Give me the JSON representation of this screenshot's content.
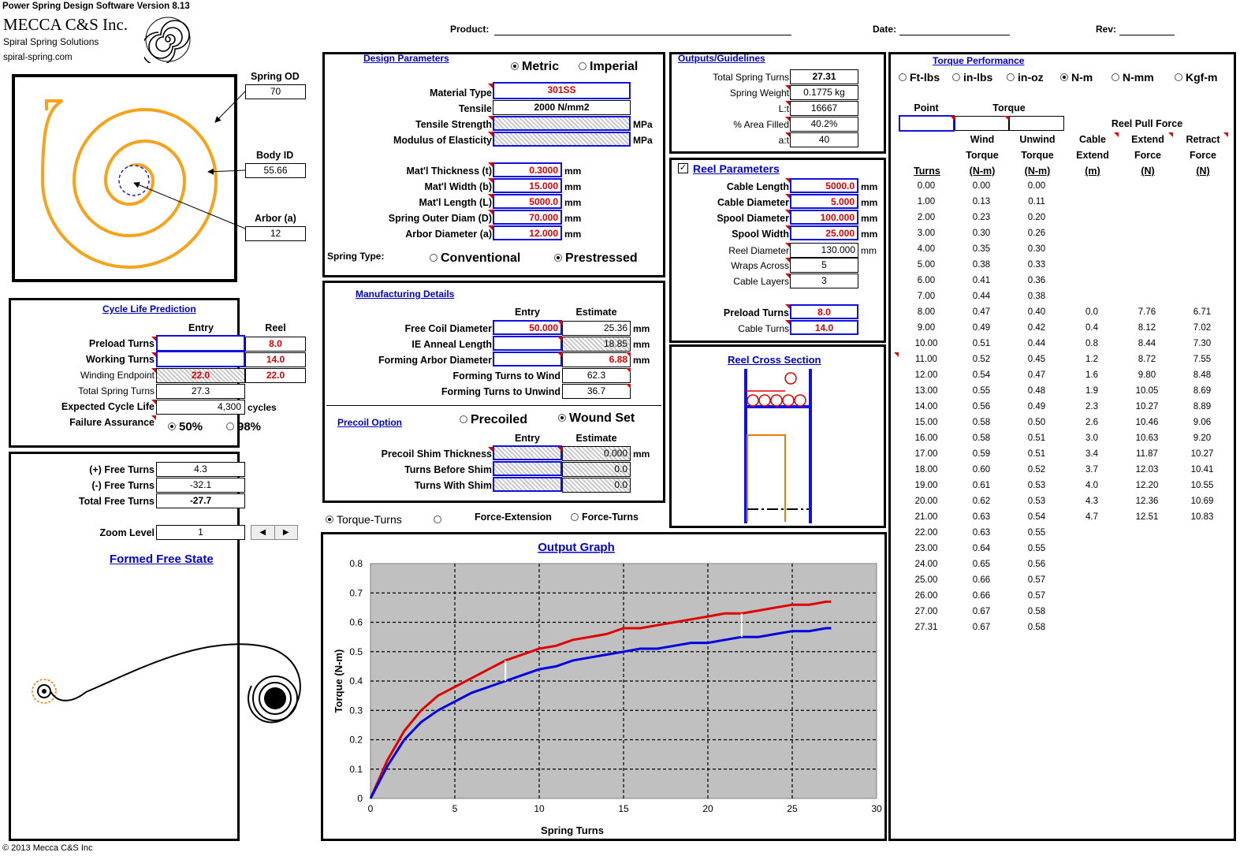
{
  "header": {
    "app_title": "Power Spring Design Software Version 8.13",
    "company": "MECCA C&S Inc.",
    "tagline": "Spiral Spring Solutions",
    "website": "spiral-spring.com",
    "product_label": "Product:",
    "date_label": "Date:",
    "rev_label": "Rev:",
    "footer": "© 2013 Mecca C&S Inc"
  },
  "spring_view": {
    "od_label": "Spring OD",
    "od_value": "70",
    "body_label": "Body ID",
    "body_value": "55.66",
    "arbor_label": "Arbor (a)",
    "arbor_value": "12"
  },
  "cycle": {
    "title": "Cycle Life Prediction",
    "col_entry": "Entry",
    "col_reel": "Reel",
    "preload_label": "Preload Turns",
    "preload_reel": "8.0",
    "working_label": "Working Turns",
    "working_reel": "14.0",
    "winding_label": "Winding Endpoint",
    "winding_entry": "22.0",
    "winding_reel": "22.0",
    "total_label": "Total Spring Turns",
    "total_value": "27.3",
    "life_label": "Expected Cycle Life",
    "life_value": "4,300",
    "life_unit": "cycles",
    "failure_label": "Failure Assurance",
    "opt50": "50%",
    "opt98": "98%"
  },
  "free": {
    "plus_label": "(+) Free Turns",
    "plus_value": "4.3",
    "minus_label": "(-) Free Turns",
    "minus_value": "-32.1",
    "total_label": "Total Free Turns",
    "total_value": "-27.7",
    "zoom_label": "Zoom Level",
    "zoom_value": "1",
    "formed_title": "Formed Free State"
  },
  "design": {
    "title": "Design Parameters",
    "metric": "Metric",
    "imperial": "Imperial",
    "material_label": "Material Type",
    "material_value": "301SS",
    "tensile_label": "Tensile",
    "tensile_value": "2000 N/mm2",
    "tstrength_label": "Tensile Strength",
    "modulus_label": "Modulus of Elasticity",
    "mpa": "MPa",
    "thick_label": "Mat'l Thickness (t)",
    "thick_value": "0.3000",
    "width_label": "Mat'l Width (b)",
    "width_value": "15.000",
    "length_label": "Mat'l Length (L)",
    "length_value": "5000.0",
    "od_label": "Spring Outer Diam (D)",
    "od_value": "70.000",
    "arbor_label": "Arbor Diameter (a)",
    "arbor_value": "12.000",
    "mm": "mm",
    "type_label": "Spring Type:",
    "conventional": "Conventional",
    "prestressed": "Prestressed"
  },
  "mfg": {
    "title": "Manufacturing Details",
    "col_entry": "Entry",
    "col_est": "Estimate",
    "free_coil_label": "Free Coil Diameter",
    "free_coil_entry": "50.000",
    "free_coil_est": "25.36",
    "anneal_label": "IE Anneal Length",
    "anneal_est": "18.85",
    "forming_arbor_label": "Forming Arbor Diameter",
    "forming_arbor_est": "6.88",
    "ftw_label": "Forming Turns to Wind",
    "ftw_value": "62.3",
    "ftu_label": "Forming Turns to Unwind",
    "ftu_value": "36.7",
    "precoil_title": "Precoil Option",
    "precoiled": "Precoiled",
    "wound_set": "Wound Set",
    "pre_entry": "Entry",
    "pre_est": "Estimate",
    "shim_label": "Precoil Shim Thickness",
    "shim_est": "0.000",
    "before_label": "Turns Before Shim",
    "before_est": "0.0",
    "with_label": "Turns With Shim",
    "with_est": "0.0"
  },
  "graph_opts": {
    "torque_turns": "Torque-Turns",
    "force_ext": "Force-Extension",
    "force_turns": "Force-Turns"
  },
  "outputs": {
    "title": "Outputs/Guidelines",
    "tst_label": "Total Spring Turns",
    "tst_value": "27.31",
    "weight_label": "Spring Weight",
    "weight_value": "0.1775 kg",
    "lt_label": "L:t",
    "lt_value": "16667",
    "area_label": "% Area Filled",
    "area_value": "40.2%",
    "at_label": "a:t",
    "at_value": "40"
  },
  "reel": {
    "title": "Reel Parameters",
    "cable_len_label": "Cable Length",
    "cable_len_value": "5000.0",
    "cable_dia_label": "Cable Diameter",
    "cable_dia_value": "5.000",
    "spool_dia_label": "Spool Diameter",
    "spool_dia_value": "100.000",
    "spool_w_label": "Spool Width",
    "spool_w_value": "25.000",
    "reel_dia_label": "Reel Diameter",
    "reel_dia_value": "130.000",
    "wraps_label": "Wraps Across",
    "wraps_value": "5",
    "layers_label": "Cable Layers",
    "layers_value": "3",
    "preload_label": "Preload Turns",
    "preload_value": "8.0",
    "cable_turns_label": "Cable Turns",
    "cable_turns_value": "14.0",
    "mm": "mm",
    "cross_title": "Reel Cross Section"
  },
  "torque_perf": {
    "title": "Torque Performance",
    "units": [
      "Ft-lbs",
      "in-lbs",
      "in-oz",
      "N-m",
      "N-mm",
      "Kgf-m"
    ],
    "point_label": "Point",
    "torque_label": "Torque",
    "reel_pull": "Reel Pull Force",
    "headers": [
      [
        "",
        "Turns"
      ],
      [
        "Wind",
        "Torque",
        "(N-m)"
      ],
      [
        "Unwind",
        "Torque",
        "(N-m)"
      ],
      [
        "Cable",
        "Extend",
        "(m)"
      ],
      [
        "Extend",
        "Force",
        "(N)"
      ],
      [
        "Retract",
        "Force",
        "(N)"
      ]
    ],
    "rows": [
      [
        "0.00",
        "0.00",
        "0.00",
        "",
        "",
        ""
      ],
      [
        "1.00",
        "0.13",
        "0.11",
        "",
        "",
        ""
      ],
      [
        "2.00",
        "0.23",
        "0.20",
        "",
        "",
        ""
      ],
      [
        "3.00",
        "0.30",
        "0.26",
        "",
        "",
        ""
      ],
      [
        "4.00",
        "0.35",
        "0.30",
        "",
        "",
        ""
      ],
      [
        "5.00",
        "0.38",
        "0.33",
        "",
        "",
        ""
      ],
      [
        "6.00",
        "0.41",
        "0.36",
        "",
        "",
        ""
      ],
      [
        "7.00",
        "0.44",
        "0.38",
        "",
        "",
        ""
      ],
      [
        "8.00",
        "0.47",
        "0.40",
        "0.0",
        "7.76",
        "6.71"
      ],
      [
        "9.00",
        "0.49",
        "0.42",
        "0.4",
        "8.12",
        "7.02"
      ],
      [
        "10.00",
        "0.51",
        "0.44",
        "0.8",
        "8.44",
        "7.30"
      ],
      [
        "11.00",
        "0.52",
        "0.45",
        "1.2",
        "8.72",
        "7.55"
      ],
      [
        "12.00",
        "0.54",
        "0.47",
        "1.6",
        "9.80",
        "8.48"
      ],
      [
        "13.00",
        "0.55",
        "0.48",
        "1.9",
        "10.05",
        "8.69"
      ],
      [
        "14.00",
        "0.56",
        "0.49",
        "2.3",
        "10.27",
        "8.89"
      ],
      [
        "15.00",
        "0.58",
        "0.50",
        "2.6",
        "10.46",
        "9.06"
      ],
      [
        "16.00",
        "0.58",
        "0.51",
        "3.0",
        "10.63",
        "9.20"
      ],
      [
        "17.00",
        "0.59",
        "0.51",
        "3.4",
        "11.87",
        "10.27"
      ],
      [
        "18.00",
        "0.60",
        "0.52",
        "3.7",
        "12.03",
        "10.41"
      ],
      [
        "19.00",
        "0.61",
        "0.53",
        "4.0",
        "12.20",
        "10.55"
      ],
      [
        "20.00",
        "0.62",
        "0.53",
        "4.3",
        "12.36",
        "10.69"
      ],
      [
        "21.00",
        "0.63",
        "0.54",
        "4.7",
        "12.51",
        "10.83"
      ],
      [
        "22.00",
        "0.63",
        "0.55",
        "",
        "",
        ""
      ],
      [
        "23.00",
        "0.64",
        "0.55",
        "",
        "",
        ""
      ],
      [
        "24.00",
        "0.65",
        "0.56",
        "",
        "",
        ""
      ],
      [
        "25.00",
        "0.66",
        "0.57",
        "",
        "",
        ""
      ],
      [
        "26.00",
        "0.66",
        "0.57",
        "",
        "",
        ""
      ],
      [
        "27.00",
        "0.67",
        "0.58",
        "",
        "",
        ""
      ],
      [
        "27.31",
        "0.67",
        "0.58",
        "",
        "",
        ""
      ]
    ]
  },
  "chart_data": {
    "type": "line",
    "title": "Output Graph",
    "xlabel": "Spring Turns",
    "ylabel": "Torque (N-m)",
    "xlim": [
      0,
      30
    ],
    "ylim": [
      0,
      0.8
    ],
    "xticks": [
      "0",
      "5",
      "10",
      "15",
      "20",
      "25",
      "30"
    ],
    "yticks": [
      "0",
      "0.1",
      "0.2",
      "0.3",
      "0.4",
      "0.5",
      "0.6",
      "0.7",
      "0.8"
    ],
    "grid": true,
    "x": [
      0,
      1,
      2,
      3,
      4,
      5,
      6,
      7,
      8,
      9,
      10,
      11,
      12,
      13,
      14,
      15,
      16,
      17,
      18,
      19,
      20,
      21,
      22,
      23,
      24,
      25,
      26,
      27,
      27.31
    ],
    "series": [
      {
        "color": "#e00000",
        "values": [
          0,
          0.13,
          0.23,
          0.3,
          0.35,
          0.38,
          0.41,
          0.44,
          0.47,
          0.49,
          0.51,
          0.52,
          0.54,
          0.55,
          0.56,
          0.58,
          0.58,
          0.59,
          0.6,
          0.61,
          0.62,
          0.63,
          0.63,
          0.64,
          0.65,
          0.66,
          0.66,
          0.67,
          0.67
        ]
      },
      {
        "color": "#0000e0",
        "values": [
          0,
          0.11,
          0.2,
          0.26,
          0.3,
          0.33,
          0.36,
          0.38,
          0.4,
          0.42,
          0.44,
          0.45,
          0.47,
          0.48,
          0.49,
          0.5,
          0.51,
          0.51,
          0.52,
          0.53,
          0.53,
          0.54,
          0.55,
          0.55,
          0.56,
          0.57,
          0.57,
          0.58,
          0.58
        ]
      }
    ],
    "markers": [
      {
        "x": 8,
        "y0": 0.4,
        "y1": 0.47
      },
      {
        "x": 22,
        "y0": 0.55,
        "y1": 0.63
      }
    ]
  }
}
